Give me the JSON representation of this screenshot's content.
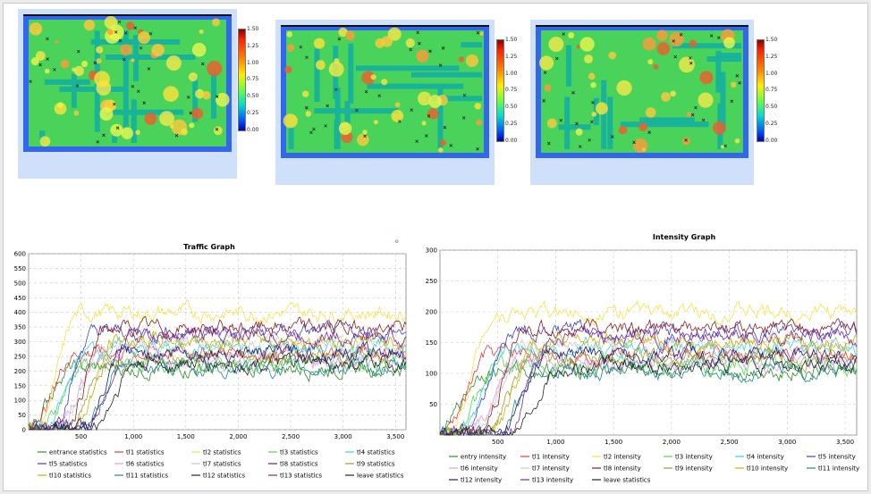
{
  "heatmap": {
    "ticks": [
      "1.50",
      "1.25",
      "1.00",
      "0.75",
      "0.50",
      "0.25",
      "0.00"
    ]
  },
  "traffic": {
    "title": "Traffic Graph",
    "corner_mark": "o",
    "y_ticks": [
      "600",
      "550",
      "500",
      "450",
      "400",
      "350",
      "300",
      "250",
      "200",
      "150",
      "100",
      "50",
      "0"
    ],
    "x_ticks": [
      "500",
      "1,000",
      "1,500",
      "2,000",
      "2,500",
      "3,000",
      "3,500"
    ],
    "legend": [
      {
        "name": "entrance statistics",
        "color": "#2e8b2e"
      },
      {
        "name": "tl1 statistics",
        "color": "#e63946"
      },
      {
        "name": "tl2 statistics",
        "color": "#f4e242"
      },
      {
        "name": "tl3 statistics",
        "color": "#5ad35a"
      },
      {
        "name": "tl4 statistics",
        "color": "#34d6d6"
      },
      {
        "name": "tl5 statistics",
        "color": "#4040c8"
      },
      {
        "name": "tl6 statistics",
        "color": "#e59ae5"
      },
      {
        "name": "tl7 statistics",
        "color": "#c8c8c8"
      },
      {
        "name": "tl8 statistics",
        "color": "#8b1e1e"
      },
      {
        "name": "tl9 statistics",
        "color": "#9aa12e"
      },
      {
        "name": "tl10 statistics",
        "color": "#c8b000"
      },
      {
        "name": "tl11 statistics",
        "color": "#1f8c8c"
      },
      {
        "name": "tl12 statistics",
        "color": "#1a1a80"
      },
      {
        "name": "tl13 statistics",
        "color": "#7b2c9e"
      },
      {
        "name": "leave statistics",
        "color": "#222222"
      }
    ]
  },
  "intensity": {
    "title": "Intensity Graph",
    "y_ticks": [
      "300",
      "250",
      "200",
      "150",
      "100",
      "50"
    ],
    "x_ticks": [
      "500",
      "1,000",
      "1,500",
      "2,000",
      "2,500",
      "3,000",
      "3,500"
    ],
    "legend": [
      {
        "name": "entry intensity",
        "color": "#2e8b2e"
      },
      {
        "name": "tl1 intensity",
        "color": "#e63946"
      },
      {
        "name": "tl2 intensity",
        "color": "#f4e242"
      },
      {
        "name": "tl3 intensity",
        "color": "#5ad35a"
      },
      {
        "name": "tl4 intensity",
        "color": "#34d6d6"
      },
      {
        "name": "tl5 intensity",
        "color": "#4040c8"
      },
      {
        "name": "tl6 intensity",
        "color": "#e59ae5"
      },
      {
        "name": "tl7 intensity",
        "color": "#c8c8c8"
      },
      {
        "name": "tl8 intensity",
        "color": "#8b1e1e"
      },
      {
        "name": "tl9 intensity",
        "color": "#9aa12e"
      },
      {
        "name": "tl10 intensity",
        "color": "#c8b000"
      },
      {
        "name": "tl11 intensity",
        "color": "#1f8c8c"
      },
      {
        "name": "tl12 intensity",
        "color": "#1a1a80"
      },
      {
        "name": "tl13 intensity",
        "color": "#7b2c9e"
      },
      {
        "name": "leave statistics",
        "color": "#222222"
      }
    ]
  }
}
